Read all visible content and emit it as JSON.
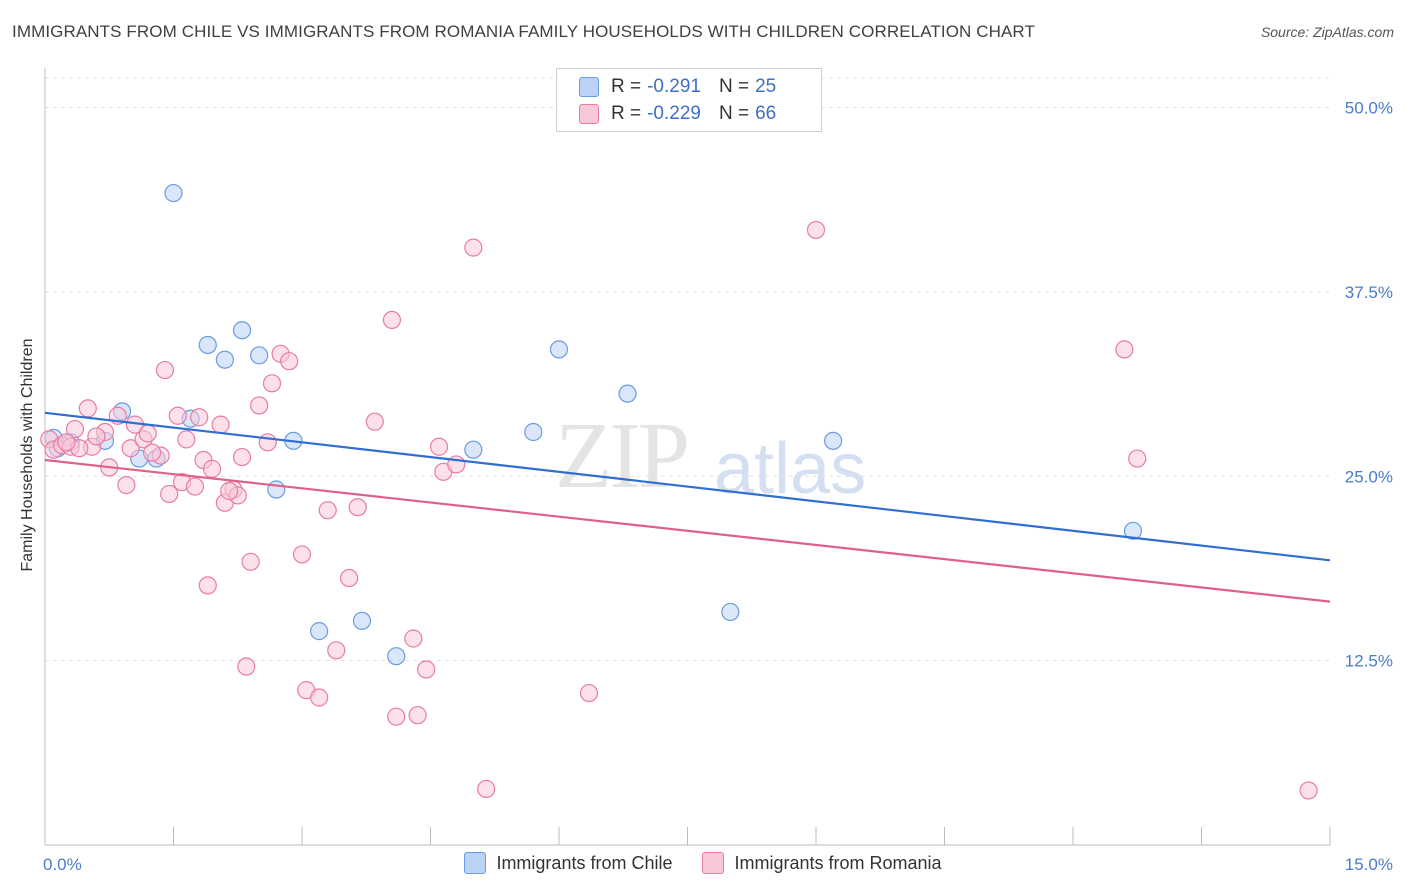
{
  "title": "IMMIGRANTS FROM CHILE VS IMMIGRANTS FROM ROMANIA FAMILY HOUSEHOLDS WITH CHILDREN CORRELATION CHART",
  "source": "Source: ZipAtlas.com",
  "watermark": {
    "zip": "ZIP",
    "atlas": "atlas"
  },
  "legend": {
    "rows": [
      {
        "r_label": "R =",
        "r_value": "-0.291",
        "n_label": "N =",
        "n_value": "25",
        "color": "#a8c4f0"
      },
      {
        "r_label": "R =",
        "r_value": "-0.229",
        "n_label": "N =",
        "n_value": "66",
        "color": "#f5b8cc"
      }
    ]
  },
  "bottom_legend": [
    "Immigrants from Chile",
    "Immigrants from Romania"
  ],
  "chart_data": {
    "type": "scatter",
    "title": "IMMIGRANTS FROM CHILE VS IMMIGRANTS FROM ROMANIA FAMILY HOUSEHOLDS WITH CHILDREN CORRELATION CHART",
    "xlabel": "",
    "ylabel": "Family Households with Children",
    "xlim": [
      0,
      15
    ],
    "ylim": [
      0,
      52
    ],
    "x_tick_labels": [
      "0.0%",
      "15.0%"
    ],
    "y_tick_labels": [
      "12.5%",
      "25.0%",
      "37.5%",
      "50.0%"
    ],
    "y_ticks": [
      12.5,
      25.0,
      37.5,
      50.0
    ],
    "grid": true,
    "legend_position": "top-center",
    "series": [
      {
        "name": "Immigrants from Chile",
        "color": "#6b9be0",
        "fill": "#bcd3f5",
        "trend": {
          "x": [
            0,
            15
          ],
          "y": [
            29.3,
            19.3
          ]
        },
        "points": [
          [
            0.1,
            27.6
          ],
          [
            0.3,
            27.3
          ],
          [
            0.7,
            27.4
          ],
          [
            0.9,
            29.4
          ],
          [
            1.1,
            26.2
          ],
          [
            1.3,
            26.2
          ],
          [
            1.5,
            44.2
          ],
          [
            1.7,
            28.9
          ],
          [
            1.9,
            33.9
          ],
          [
            2.1,
            32.9
          ],
          [
            2.3,
            34.9
          ],
          [
            2.5,
            33.2
          ],
          [
            2.7,
            24.1
          ],
          [
            2.9,
            27.4
          ],
          [
            3.2,
            14.5
          ],
          [
            3.7,
            15.2
          ],
          [
            4.1,
            12.8
          ],
          [
            5.0,
            26.8
          ],
          [
            5.7,
            28.0
          ],
          [
            6.0,
            33.6
          ],
          [
            6.8,
            30.6
          ],
          [
            8.0,
            15.8
          ],
          [
            9.2,
            27.4
          ],
          [
            12.7,
            21.3
          ],
          [
            0.15,
            26.9
          ]
        ]
      },
      {
        "name": "Immigrants from Romania",
        "color": "#e87da2",
        "fill": "#f9c8d8",
        "trend": {
          "x": [
            0,
            15
          ],
          "y": [
            26.1,
            16.5
          ]
        },
        "points": [
          [
            0.05,
            27.5
          ],
          [
            0.1,
            26.8
          ],
          [
            0.2,
            27.1
          ],
          [
            0.3,
            27.0
          ],
          [
            0.35,
            28.2
          ],
          [
            0.5,
            29.6
          ],
          [
            0.55,
            27.0
          ],
          [
            0.7,
            28.0
          ],
          [
            0.75,
            25.6
          ],
          [
            0.85,
            29.1
          ],
          [
            0.95,
            24.4
          ],
          [
            1.0,
            26.9
          ],
          [
            1.05,
            28.5
          ],
          [
            1.15,
            27.5
          ],
          [
            1.2,
            27.9
          ],
          [
            1.35,
            26.4
          ],
          [
            1.4,
            32.2
          ],
          [
            1.45,
            23.8
          ],
          [
            1.55,
            29.1
          ],
          [
            1.6,
            24.6
          ],
          [
            1.65,
            27.5
          ],
          [
            1.75,
            24.3
          ],
          [
            1.85,
            26.1
          ],
          [
            1.9,
            17.6
          ],
          [
            1.95,
            25.5
          ],
          [
            2.05,
            28.5
          ],
          [
            2.1,
            23.2
          ],
          [
            2.2,
            24.1
          ],
          [
            2.25,
            23.7
          ],
          [
            2.3,
            26.3
          ],
          [
            2.35,
            12.1
          ],
          [
            2.4,
            19.2
          ],
          [
            2.5,
            29.8
          ],
          [
            2.6,
            27.3
          ],
          [
            2.65,
            31.3
          ],
          [
            2.75,
            33.3
          ],
          [
            2.85,
            32.8
          ],
          [
            3.0,
            19.7
          ],
          [
            3.05,
            10.5
          ],
          [
            3.2,
            10.0
          ],
          [
            3.3,
            22.7
          ],
          [
            3.4,
            13.2
          ],
          [
            3.55,
            18.1
          ],
          [
            3.65,
            22.9
          ],
          [
            3.85,
            28.7
          ],
          [
            4.05,
            35.6
          ],
          [
            4.1,
            8.7
          ],
          [
            4.3,
            14.0
          ],
          [
            4.35,
            8.8
          ],
          [
            4.45,
            11.9
          ],
          [
            4.6,
            27.0
          ],
          [
            4.65,
            25.3
          ],
          [
            4.8,
            25.8
          ],
          [
            5.0,
            40.5
          ],
          [
            5.15,
            3.8
          ],
          [
            6.35,
            10.3
          ],
          [
            9.0,
            41.7
          ],
          [
            12.6,
            33.6
          ],
          [
            12.75,
            26.2
          ],
          [
            14.75,
            3.7
          ],
          [
            0.4,
            26.9
          ],
          [
            0.6,
            27.7
          ],
          [
            1.25,
            26.6
          ],
          [
            1.8,
            29.0
          ],
          [
            2.15,
            24.0
          ],
          [
            0.25,
            27.3
          ]
        ]
      }
    ]
  }
}
